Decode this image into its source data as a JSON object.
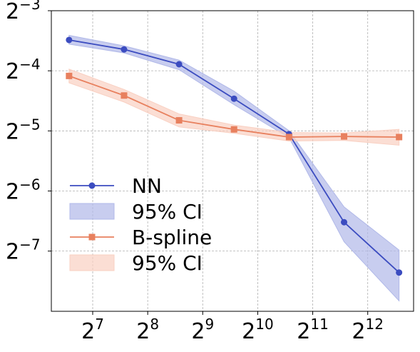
{
  "chart_data": {
    "type": "line",
    "title": "",
    "xlabel": "",
    "ylabel": "",
    "x_scale": "log2",
    "y_scale": "log2",
    "x": [
      95,
      190,
      380,
      760,
      1520,
      3040,
      6080
    ],
    "xlim": [
      76,
      7300
    ],
    "ylim": [
      0.0039,
      0.125
    ],
    "x_ticks": [
      {
        "value": 128,
        "base": "2",
        "exp": "7"
      },
      {
        "value": 256,
        "base": "2",
        "exp": "8"
      },
      {
        "value": 512,
        "base": "2",
        "exp": "9"
      },
      {
        "value": 1024,
        "base": "2",
        "exp": "10"
      },
      {
        "value": 2048,
        "base": "2",
        "exp": "11"
      },
      {
        "value": 4096,
        "base": "2",
        "exp": "12"
      }
    ],
    "y_ticks": [
      {
        "value": 0.125,
        "base": "2",
        "exp": "−3"
      },
      {
        "value": 0.0625,
        "base": "2",
        "exp": "−4"
      },
      {
        "value": 0.03125,
        "base": "2",
        "exp": "−5"
      },
      {
        "value": 0.015625,
        "base": "2",
        "exp": "−6"
      },
      {
        "value": 0.0078125,
        "base": "2",
        "exp": "−7"
      }
    ],
    "grid": true,
    "legend_position": "lower-left",
    "series": [
      {
        "name": "NN",
        "color": "#3b4cc0",
        "marker": "circle",
        "values": [
          0.0892,
          0.08,
          0.0674,
          0.0453,
          0.0301,
          0.0109,
          0.0061
        ],
        "ci_lower": [
          0.085,
          0.0768,
          0.0633,
          0.0423,
          0.0289,
          0.0087,
          0.0044
        ],
        "ci_upper": [
          0.0941,
          0.0833,
          0.0707,
          0.0494,
          0.0313,
          0.013,
          0.0079
        ],
        "ci_name": "95% CI",
        "ci_color": "#b0b8e8"
      },
      {
        "name": "B-spline",
        "color": "#e8805e",
        "marker": "square",
        "values": [
          0.0589,
          0.047,
          0.0353,
          0.0318,
          0.0291,
          0.0293,
          0.0291
        ],
        "ci_lower": [
          0.0544,
          0.0436,
          0.0327,
          0.0304,
          0.0278,
          0.028,
          0.0265
        ],
        "ci_upper": [
          0.0637,
          0.0504,
          0.038,
          0.0334,
          0.0307,
          0.0305,
          0.0318
        ],
        "ci_name": "95% CI",
        "ci_color": "#f9d0c2"
      }
    ]
  }
}
